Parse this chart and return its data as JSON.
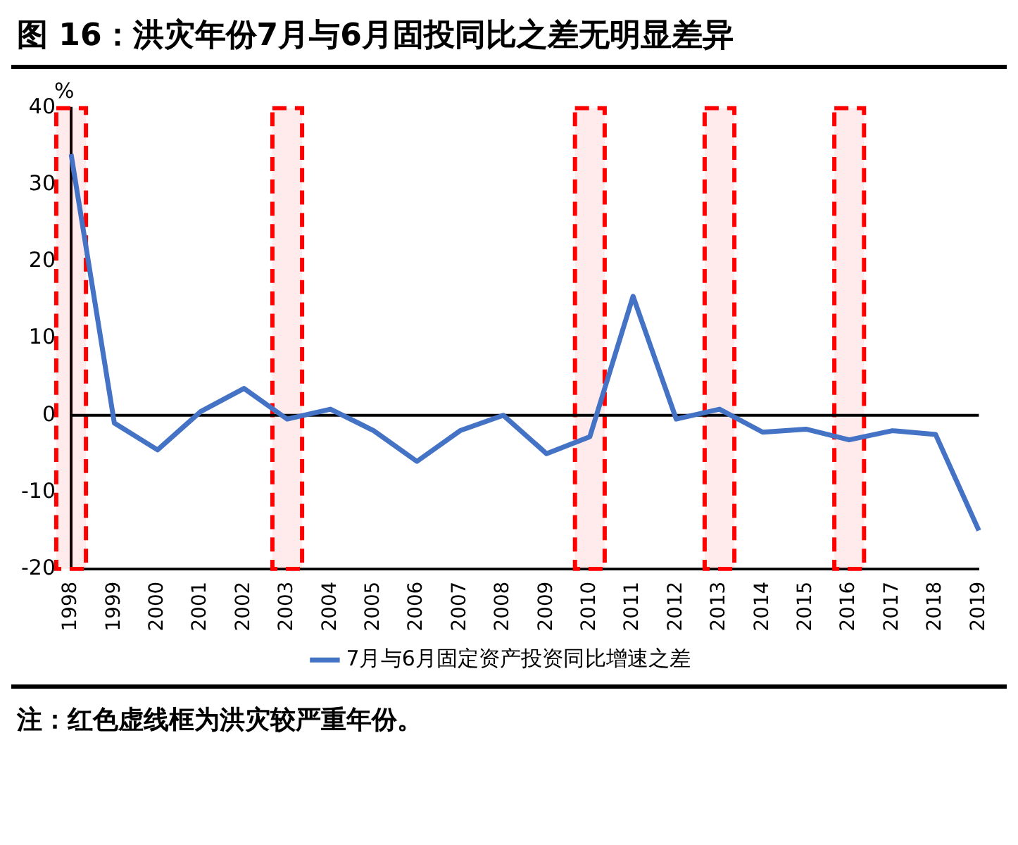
{
  "chart_data": {
    "type": "line",
    "title": "图 16：洪灾年份7月与6月固投同比之差无明显差异",
    "ylabel": "%",
    "categories": [
      "1998",
      "1999",
      "2000",
      "2001",
      "2002",
      "2003",
      "2004",
      "2005",
      "2006",
      "2007",
      "2008",
      "2009",
      "2010",
      "2011",
      "2012",
      "2013",
      "2014",
      "2015",
      "2016",
      "2017",
      "2018",
      "2019"
    ],
    "series": [
      {
        "name": "7月与6月固定资产投资同比增速之差",
        "color": "#4472c4",
        "values": [
          34,
          -1,
          -4.5,
          0.5,
          3.5,
          -0.5,
          0.8,
          -2,
          -6,
          -2,
          0,
          -5,
          -2.8,
          15.5,
          -0.5,
          0.8,
          -2.2,
          -1.8,
          -3.2,
          -2,
          -2.5,
          -15
        ]
      }
    ],
    "ylim": [
      -20,
      40
    ],
    "yticks": [
      -20,
      -10,
      0,
      10,
      20,
      30,
      40
    ],
    "grid": false,
    "legend": "bottom",
    "marker": "none",
    "line_style": "solid",
    "bands": [
      {
        "axis": "x",
        "from": "1998",
        "to": "1998",
        "color": "#ff0000"
      },
      {
        "axis": "x",
        "from": "2003",
        "to": "2003",
        "color": "#ff0000"
      },
      {
        "axis": "x",
        "from": "2010",
        "to": "2010",
        "color": "#ff0000"
      },
      {
        "axis": "x",
        "from": "2013",
        "to": "2013",
        "color": "#ff0000"
      },
      {
        "axis": "x",
        "from": "2016",
        "to": "2016",
        "color": "#ff0000"
      }
    ],
    "ref_lines": [
      {
        "axis": "y",
        "value": 0,
        "color": "#000000"
      }
    ],
    "annotations": [
      "注：红色虚线框为洪灾较严重年份。"
    ]
  }
}
